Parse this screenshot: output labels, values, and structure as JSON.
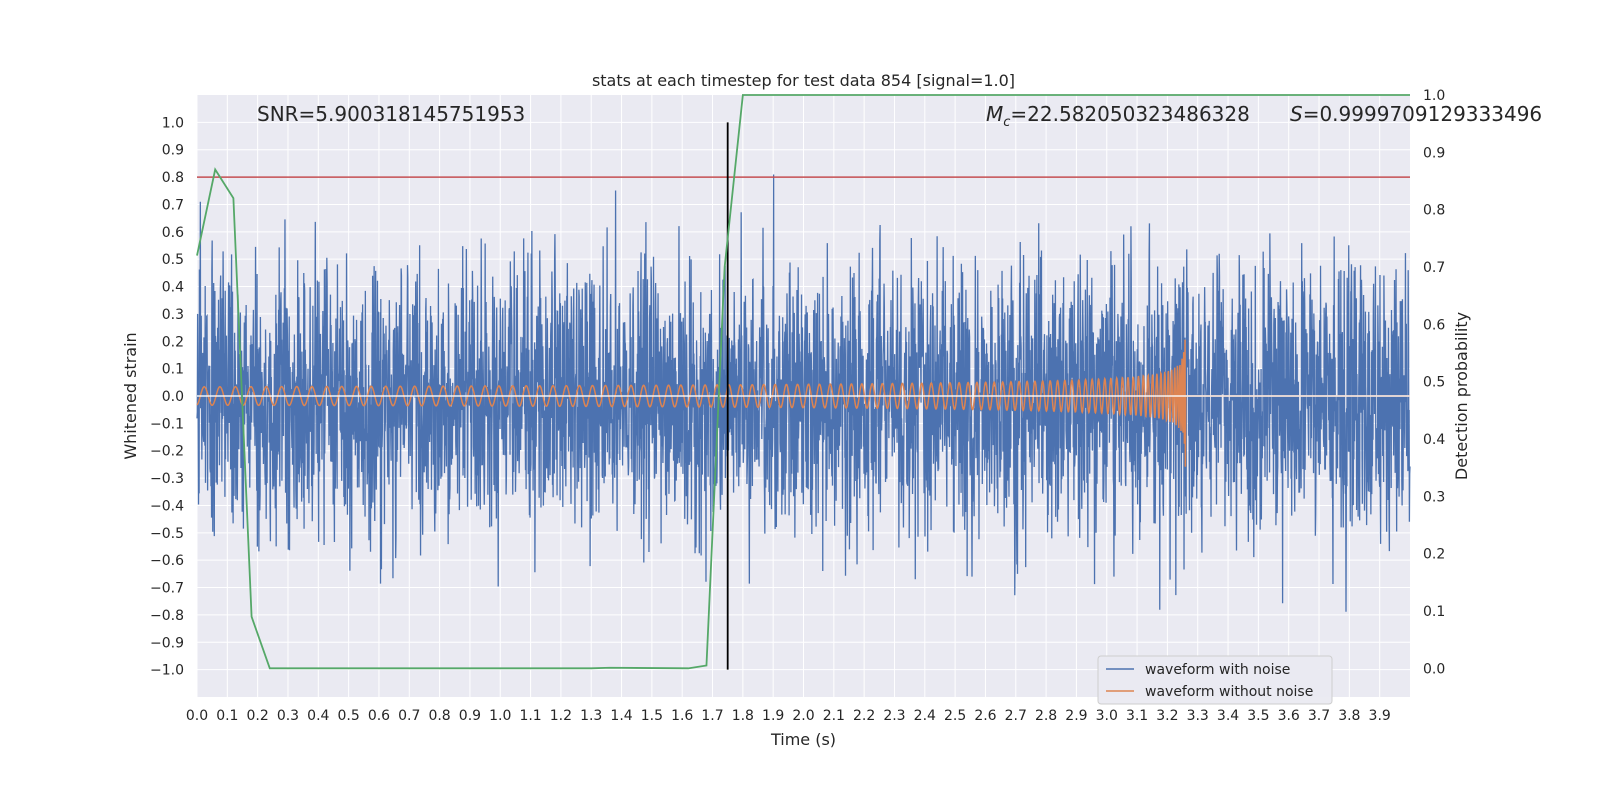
{
  "chart_data": {
    "type": "line",
    "title": "stats at each timestep for test data 854 [signal=1.0]",
    "xlabel": "Time (s)",
    "ylabel": "Whitened strain",
    "y2label": "Detection probability",
    "xlim": [
      0.0,
      4.0
    ],
    "ylim": [
      -1.1,
      1.1
    ],
    "y2lim": [
      -0.05,
      1.0
    ],
    "xticks": [
      "0.0",
      "0.1",
      "0.2",
      "0.3",
      "0.4",
      "0.5",
      "0.6",
      "0.7",
      "0.8",
      "0.9",
      "1.0",
      "1.1",
      "1.2",
      "1.3",
      "1.4",
      "1.5",
      "1.6",
      "1.7",
      "1.8",
      "1.9",
      "2.0",
      "2.1",
      "2.2",
      "2.3",
      "2.4",
      "2.5",
      "2.6",
      "2.7",
      "2.8",
      "2.9",
      "3.0",
      "3.1",
      "3.2",
      "3.3",
      "3.4",
      "3.5",
      "3.6",
      "3.7",
      "3.8",
      "3.9"
    ],
    "yticks": [
      "1.0",
      "0.9",
      "0.8",
      "0.7",
      "0.6",
      "0.5",
      "0.4",
      "0.3",
      "0.2",
      "0.1",
      "0.0",
      "−0.1",
      "−0.2",
      "−0.3",
      "−0.4",
      "−0.5",
      "−0.6",
      "−0.7",
      "−0.8",
      "−0.9",
      "−1.0"
    ],
    "y2ticks": [
      "1.0",
      "0.9",
      "0.8",
      "0.7",
      "0.6",
      "0.5",
      "0.4",
      "0.3",
      "0.2",
      "0.1",
      "0.0"
    ],
    "threshold": 0.8,
    "event_time": 1.75,
    "merger_time": 3.26,
    "noise_amplitude": 0.45,
    "signal_max_amplitude": 0.3,
    "detection_probability": {
      "x": [
        0.0,
        0.06,
        0.12,
        0.18,
        0.24,
        0.5,
        1.0,
        1.3,
        1.36,
        1.62,
        1.68,
        1.74,
        1.8,
        2.0,
        3.0,
        4.0
      ],
      "y": [
        0.72,
        0.87,
        0.82,
        0.09,
        0.0,
        0.0,
        0.0,
        0.0,
        0.001,
        0.0,
        0.005,
        0.7,
        1.0,
        1.0,
        1.0,
        1.0
      ]
    },
    "series": [
      {
        "name": "waveform with noise",
        "color": "#4c72b0"
      },
      {
        "name": "waveform without noise",
        "color": "#dd8452"
      }
    ],
    "annotations": {
      "snr": "SNR=5.900318145751953",
      "mc_symbol": "M",
      "mc_sub": "c",
      "mc_value": "=22.582050323486328",
      "s_symbol": "S",
      "s_value": "=0.9999709129333496"
    },
    "legend_loc": "lower-right",
    "colors": {
      "background": "#eaeaf2",
      "grid": "#ffffff",
      "noise": "#4c72b0",
      "signal": "#dd8452",
      "probability": "#55a868",
      "threshold": "#c44e52",
      "event": "#000000"
    }
  }
}
